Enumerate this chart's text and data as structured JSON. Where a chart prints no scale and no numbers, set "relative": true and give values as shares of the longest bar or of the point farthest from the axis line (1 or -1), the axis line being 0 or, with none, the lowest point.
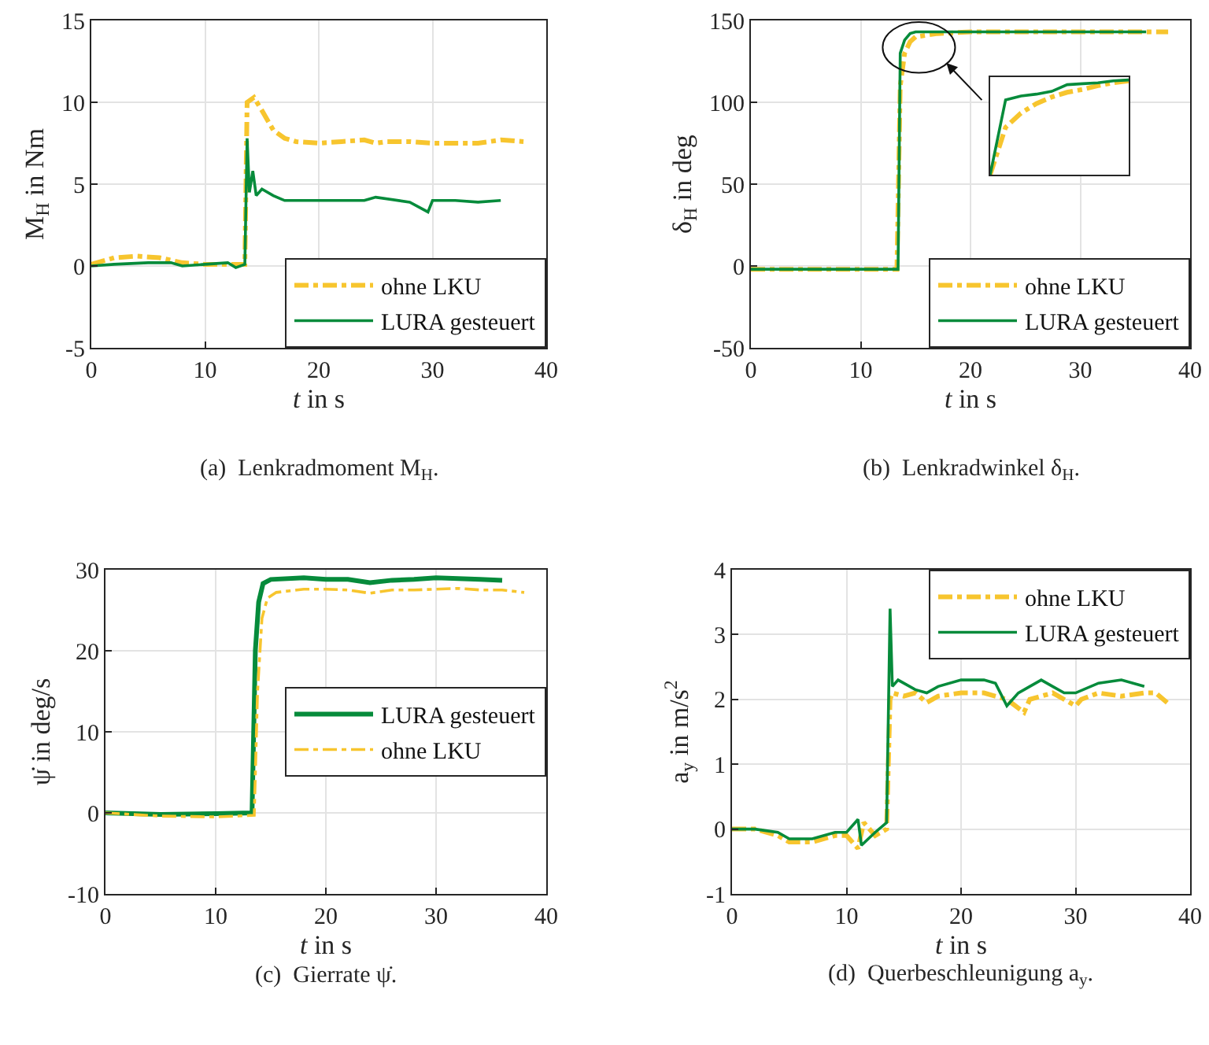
{
  "chart_data": [
    {
      "type": "line",
      "ylabel": "M$_{H}$ in Nm",
      "xlabel": "t in s",
      "xlim": [
        0,
        40
      ],
      "xticks": [
        0,
        10,
        20,
        30,
        40
      ],
      "ylim": [
        -5,
        15
      ],
      "yticks": [
        -5,
        0,
        5,
        10,
        15
      ],
      "grid": true,
      "legend": "bottom right",
      "annotations": [
        "(a)  Lenkradmoment M$_{H}$."
      ],
      "series": [
        {
          "name": "ohne LKU",
          "color": "#f7c52e",
          "line_style": "dashed",
          "x": [
            0,
            2,
            4,
            6,
            8,
            10,
            12,
            13.5,
            13.7,
            14.3,
            15,
            16,
            17,
            18,
            20,
            22,
            24,
            25,
            26,
            28,
            30,
            32,
            34,
            36,
            38
          ],
          "values": [
            0.1,
            0.5,
            0.6,
            0.5,
            0.2,
            0.1,
            0.1,
            0.1,
            10.0,
            10.3,
            9.5,
            8.3,
            7.8,
            7.6,
            7.5,
            7.6,
            7.7,
            7.5,
            7.6,
            7.6,
            7.5,
            7.5,
            7.5,
            7.7,
            7.6
          ]
        },
        {
          "name": "LURA gesteuert",
          "color": "#068b3b",
          "line_style": "solid",
          "x": [
            0,
            2,
            5,
            7,
            8,
            10,
            12,
            12.7,
            13.5,
            13.7,
            13.9,
            14.2,
            14.5,
            15,
            16,
            17,
            20,
            24,
            25,
            28,
            29.6,
            30,
            32,
            34,
            36
          ],
          "values": [
            0,
            0.1,
            0.2,
            0.2,
            0,
            0.1,
            0.2,
            -0.1,
            0.1,
            7.8,
            4.5,
            5.8,
            4.3,
            4.7,
            4.3,
            4.0,
            4.0,
            4.0,
            4.2,
            3.9,
            3.3,
            4.0,
            4.0,
            3.9,
            4.0
          ]
        }
      ]
    },
    {
      "type": "line",
      "ylabel": "δ$_{H}$ in deg",
      "xlabel": "t in s",
      "xlim": [
        0,
        40
      ],
      "xticks": [
        0,
        10,
        20,
        30,
        40
      ],
      "ylim": [
        -50,
        150
      ],
      "yticks": [
        -50,
        0,
        50,
        100,
        150
      ],
      "grid": true,
      "legend": "bottom right",
      "annotations": [
        "(b)  Lenkradwinkel δ$_{H}$."
      ],
      "series": [
        {
          "name": "ohne LKU",
          "color": "#f7c52e",
          "line_style": "dashed",
          "x": [
            0,
            13.3,
            13.6,
            14,
            14.5,
            15,
            17,
            20,
            38
          ],
          "values": [
            -2,
            -2,
            110,
            130,
            137,
            140,
            142,
            143,
            143
          ]
        },
        {
          "name": "LURA gesteuert",
          "color": "#068b3b",
          "line_style": "solid",
          "x": [
            0,
            13.4,
            13.6,
            14,
            14.5,
            15,
            36
          ],
          "values": [
            -2,
            -2,
            130,
            138,
            142,
            143,
            143
          ]
        }
      ]
    },
    {
      "type": "line",
      "ylabel": "ψ̇ in deg/s",
      "xlabel": "t in s",
      "xlim": [
        0,
        40
      ],
      "xticks": [
        0,
        10,
        20,
        30,
        40
      ],
      "ylim": [
        -10,
        30
      ],
      "yticks": [
        -10,
        0,
        10,
        20,
        30
      ],
      "grid": true,
      "legend": "right",
      "annotations": [
        "(c)  Gierrate ψ̇."
      ],
      "series": [
        {
          "name": "LURA gesteuert",
          "color": "#068b3b",
          "line_style": "solid",
          "x": [
            0,
            5,
            10,
            13.3,
            13.6,
            13.9,
            14.3,
            15,
            18,
            20,
            22,
            24,
            26,
            28,
            30,
            32,
            34,
            36
          ],
          "values": [
            0,
            -0.2,
            -0.1,
            0,
            20,
            26,
            28.3,
            28.8,
            29.0,
            28.8,
            28.8,
            28.4,
            28.7,
            28.8,
            29.0,
            28.9,
            28.8,
            28.7
          ]
        },
        {
          "name": "ohne LKU",
          "color": "#f7c52e",
          "line_style": "dashed",
          "x": [
            0,
            5,
            10,
            13.5,
            13.8,
            14.2,
            14.7,
            15.5,
            18,
            20,
            22,
            24,
            26,
            28,
            30,
            32,
            34,
            36,
            38
          ],
          "values": [
            0,
            -0.4,
            -0.5,
            -0.3,
            15,
            24,
            26.5,
            27.2,
            27.6,
            27.6,
            27.5,
            27.1,
            27.5,
            27.5,
            27.6,
            27.7,
            27.5,
            27.5,
            27.2
          ]
        }
      ]
    },
    {
      "type": "line",
      "ylabel": "a$_{y}$ in m/s$^{2}$",
      "xlabel": "t in s",
      "xlim": [
        0,
        40
      ],
      "xticks": [
        0,
        10,
        20,
        30,
        40
      ],
      "ylim": [
        -1,
        4
      ],
      "yticks": [
        -1,
        0,
        1,
        2,
        3,
        4
      ],
      "grid": true,
      "legend": "top right",
      "annotations": [
        "(d)  Querbeschleunigung a$_{y}$."
      ],
      "series": [
        {
          "name": "ohne LKU",
          "color": "#f7c52e",
          "line_style": "dashed",
          "x": [
            0,
            2,
            4,
            5,
            7,
            9,
            10,
            11,
            11.5,
            12.5,
            13.5,
            13.8,
            14,
            15,
            16,
            17,
            18,
            20,
            22,
            24,
            25.5,
            26,
            28,
            30,
            30.5,
            32,
            34,
            36,
            37,
            38
          ],
          "values": [
            0,
            0,
            -0.1,
            -0.2,
            -0.2,
            -0.1,
            -0.1,
            -0.3,
            0.1,
            -0.1,
            0,
            2.0,
            2.1,
            2.05,
            2.1,
            1.95,
            2.05,
            2.1,
            2.1,
            2.0,
            1.8,
            2.0,
            2.1,
            1.9,
            2.0,
            2.1,
            2.05,
            2.1,
            2.1,
            1.95
          ]
        },
        {
          "name": "LURA gesteuert",
          "color": "#068b3b",
          "line_style": "solid",
          "x": [
            0,
            2,
            4,
            5,
            7,
            9,
            10,
            11,
            11.3,
            12.5,
            13.5,
            13.8,
            14,
            14.5,
            16,
            17,
            18,
            20,
            22,
            23,
            24,
            25,
            26,
            27,
            28,
            29,
            30,
            32,
            34,
            36
          ],
          "values": [
            0,
            0,
            -0.05,
            -0.15,
            -0.15,
            -0.05,
            -0.05,
            0.15,
            -0.25,
            -0.05,
            0.1,
            3.4,
            2.2,
            2.3,
            2.15,
            2.1,
            2.2,
            2.3,
            2.3,
            2.25,
            1.9,
            2.1,
            2.2,
            2.3,
            2.2,
            2.1,
            2.1,
            2.25,
            2.3,
            2.2
          ]
        }
      ]
    },
    {
      "type": "line",
      "relative": true,
      "tick_labels": false,
      "grid": false,
      "legend": false,
      "categories": [
        null,
        null,
        null,
        null,
        null,
        null,
        null,
        null,
        null,
        null
      ],
      "series": [
        {
          "color": "#f7c52e",
          "line_style": "dashed",
          "values": [
            0,
            0.5,
            0.65,
            0.75,
            0.82,
            0.87,
            0.9,
            0.94,
            0.97,
            0.99
          ]
        },
        {
          "color": "#068b3b",
          "line_style": "solid",
          "values": [
            0,
            0.79,
            0.83,
            0.85,
            0.88,
            0.95,
            0.96,
            0.97,
            0.99,
            1
          ]
        }
      ]
    }
  ]
}
